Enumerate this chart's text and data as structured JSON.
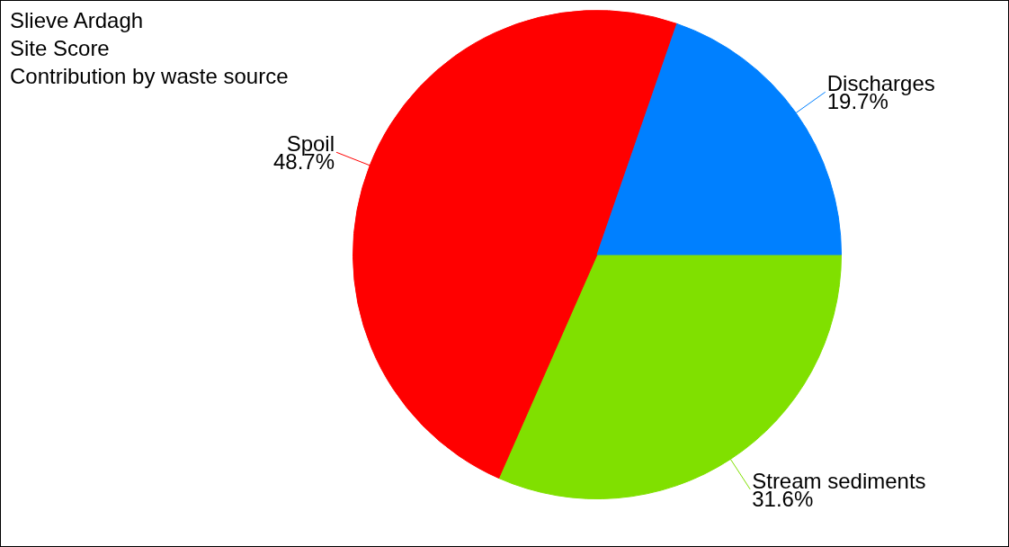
{
  "chart_data": {
    "type": "pie",
    "title": "Slieve Ardagh\nSite Score\nContribution by waste source",
    "categories": [
      "Stream sediments",
      "Spoil",
      "Discharges"
    ],
    "values": [
      31.6,
      48.7,
      19.7
    ],
    "colors": [
      "#80e000",
      "#ff0000",
      "#0080ff"
    ],
    "value_labels": [
      "31.6%",
      "48.7%",
      "19.7%"
    ],
    "legend": false
  }
}
